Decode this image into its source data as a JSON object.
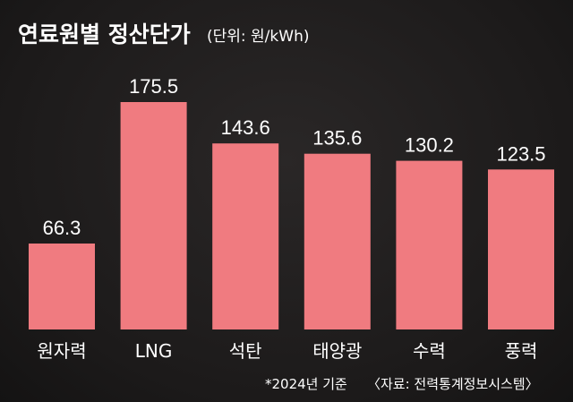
{
  "chart_data": {
    "type": "bar",
    "title": "연료원별 정산단가",
    "unit_label": "(단위: 원/kWh)",
    "categories": [
      "원자력",
      "LNG",
      "석탄",
      "태양광",
      "수력",
      "풍력"
    ],
    "values": [
      66.3,
      175.5,
      143.6,
      135.6,
      130.2,
      123.5
    ],
    "value_labels": [
      "66.3",
      "175.5",
      "143.6",
      "135.6",
      "130.2",
      "123.5"
    ],
    "ylim": [
      0,
      175.5
    ],
    "bar_color": "#f07b80",
    "grid": false,
    "legend": "none"
  },
  "footnote": {
    "basis": "*2024년 기준",
    "source": "〈자료: 전력통계정보시스템〉"
  }
}
